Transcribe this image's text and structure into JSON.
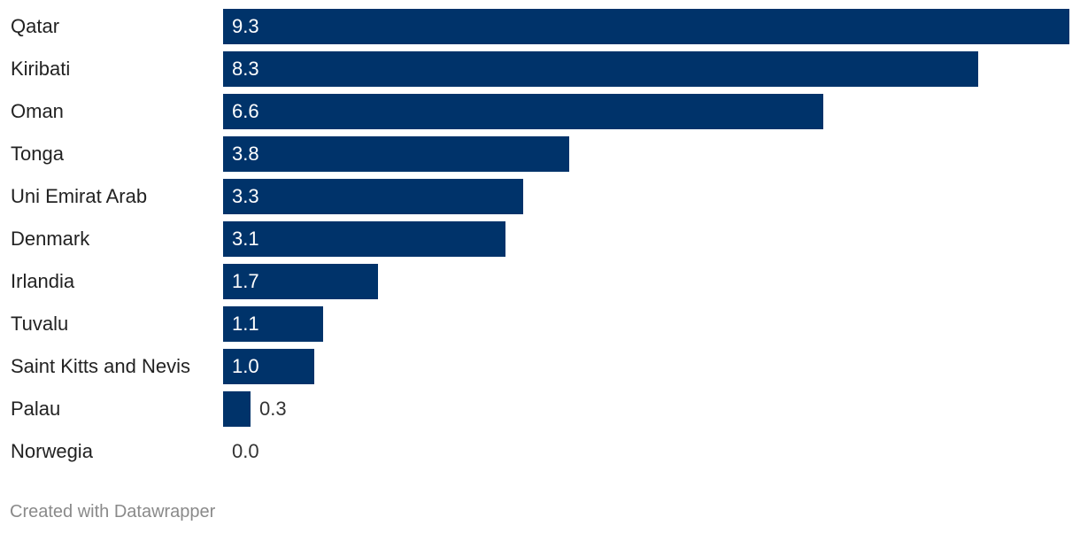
{
  "chart_data": {
    "type": "bar",
    "orientation": "horizontal",
    "categories": [
      "Qatar",
      "Kiribati",
      "Oman",
      "Tonga",
      "Uni Emirat Arab",
      "Denmark",
      "Irlandia",
      "Tuvalu",
      "Saint Kitts and Nevis",
      "Palau",
      "Norwegia"
    ],
    "values": [
      9.3,
      8.3,
      6.6,
      3.8,
      3.3,
      3.1,
      1.7,
      1.1,
      1.0,
      0.3,
      0.0
    ],
    "value_labels": [
      "9.3",
      "8.3",
      "6.6",
      "3.8",
      "3.3",
      "3.1",
      "1.7",
      "1.1",
      "1.0",
      "0.3",
      "0.0"
    ],
    "title": "",
    "xlabel": "",
    "ylabel": "",
    "xlim": [
      0,
      9.3
    ],
    "grid": false,
    "bar_color": "#00336a"
  },
  "footer": {
    "credit": "Created with Datawrapper"
  }
}
